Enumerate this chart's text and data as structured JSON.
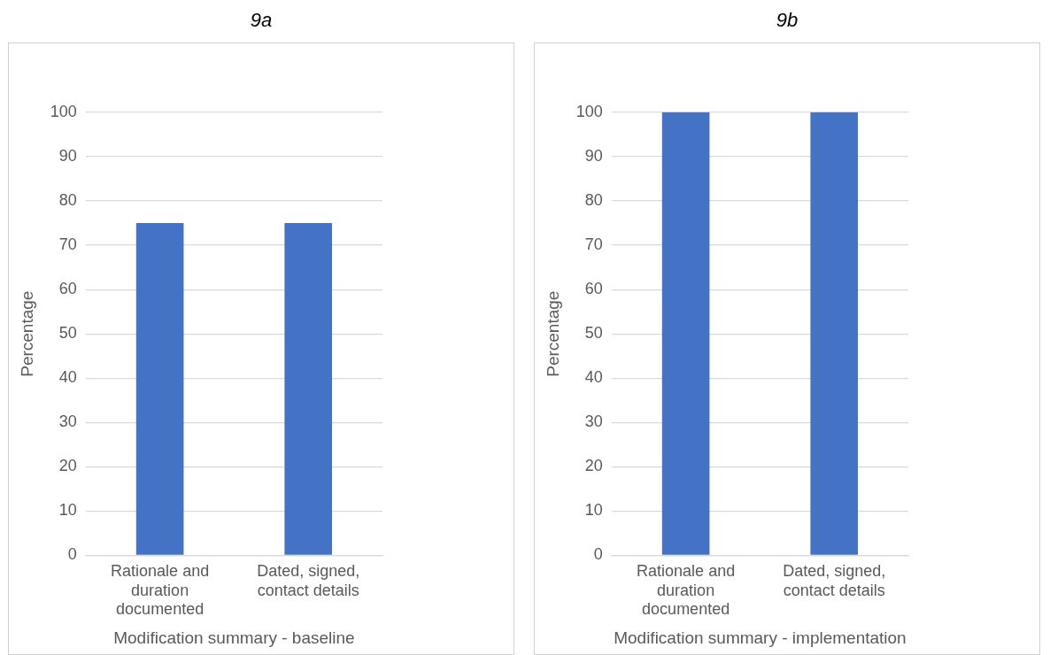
{
  "chart_data": [
    {
      "type": "bar",
      "title": "9a",
      "xlabel": "Modification summary - baseline",
      "ylabel": "Percentage",
      "categories": [
        "Rationale and duration documented",
        "Dated, signed, contact details"
      ],
      "values": [
        75,
        75
      ],
      "color": "#4472c4",
      "ylim": [
        0,
        100
      ],
      "yticks": [
        0,
        10,
        20,
        30,
        40,
        50,
        60,
        70,
        80,
        90,
        100
      ],
      "grid": "y",
      "legend": false
    },
    {
      "type": "bar",
      "title": "9b",
      "xlabel": "Modification summary - implementation",
      "ylabel": "Percentage",
      "categories": [
        "Rationale and duration documented",
        "Dated, signed, contact details"
      ],
      "values": [
        100,
        100
      ],
      "color": "#4472c4",
      "ylim": [
        0,
        100
      ],
      "yticks": [
        0,
        10,
        20,
        30,
        40,
        50,
        60,
        70,
        80,
        90,
        100
      ],
      "grid": "y",
      "legend": false
    }
  ]
}
